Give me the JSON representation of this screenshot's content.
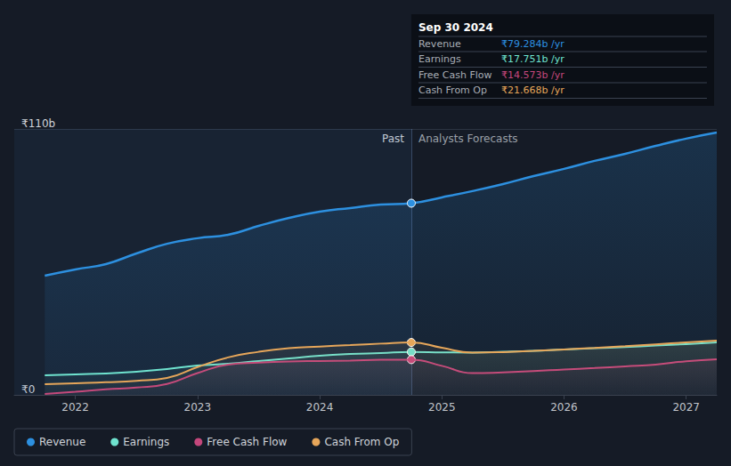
{
  "chart_data": {
    "type": "line",
    "x": [
      2021.75,
      2022.0,
      2022.25,
      2022.5,
      2022.75,
      2023.0,
      2023.25,
      2023.5,
      2023.75,
      2024.0,
      2024.25,
      2024.5,
      2024.75,
      2025.0,
      2025.25,
      2025.5,
      2025.75,
      2026.0,
      2026.25,
      2026.5,
      2026.75,
      2027.0,
      2027.25
    ],
    "series": [
      {
        "name": "Revenue",
        "color": "#2d90e0",
        "values": [
          49.3,
          51.9,
          54.1,
          58.5,
          62.5,
          64.8,
          66.2,
          69.9,
          73.2,
          75.8,
          77.3,
          78.7,
          79.284,
          81.7,
          84.3,
          87.2,
          90.5,
          93.5,
          96.8,
          99.7,
          103.0,
          106.0,
          108.5
        ]
      },
      {
        "name": "Earnings",
        "color": "#6fe3cf",
        "values": [
          8.1,
          8.5,
          8.8,
          9.6,
          10.7,
          12.1,
          12.9,
          14.0,
          15.1,
          16.2,
          16.9,
          17.3,
          17.751,
          17.6,
          17.5,
          17.8,
          18.2,
          18.8,
          19.3,
          19.8,
          20.4,
          21.0,
          21.7
        ]
      },
      {
        "name": "Free Cash Flow",
        "color": "#c4477c",
        "values": [
          0.4,
          1.3,
          2.3,
          3.0,
          4.5,
          9.0,
          12.5,
          13.3,
          13.8,
          14.0,
          14.2,
          14.5,
          14.573,
          12.0,
          9.0,
          9.3,
          9.8,
          10.5,
          11.1,
          11.8,
          12.5,
          13.9,
          14.7
        ]
      },
      {
        "name": "Cash From Op",
        "color": "#e6a65a",
        "values": [
          4.4,
          4.8,
          5.2,
          5.8,
          7.0,
          11.5,
          15.5,
          17.8,
          19.3,
          20.0,
          20.6,
          21.2,
          21.668,
          19.5,
          17.5,
          17.7,
          18.2,
          18.8,
          19.4,
          20.1,
          20.9,
          21.7,
          22.4
        ]
      }
    ],
    "xlim": [
      2021.5,
      2027.25
    ],
    "xticks": [
      2022,
      2023,
      2024,
      2025,
      2026,
      2027
    ],
    "ylim": [
      0,
      110
    ],
    "yticks": [
      {
        "value": 0,
        "label": "₹0"
      },
      {
        "value": 110,
        "label": "₹110b"
      }
    ],
    "grid": true,
    "legend": "bottom-left",
    "annotations": {
      "past_label": "Past",
      "forecast_label": "Analysts Forecasts",
      "split_x": 2024.75,
      "tooltip": {
        "title": "Sep 30 2024",
        "rows": [
          {
            "label": "Revenue",
            "value": 79.284,
            "text": "₹79.284b /yr"
          },
          {
            "label": "Earnings",
            "value": 17.751,
            "text": "₹17.751b /yr"
          },
          {
            "label": "Free Cash Flow",
            "value": 14.573,
            "text": "₹14.573b /yr"
          },
          {
            "label": "Cash From Op",
            "value": 21.668,
            "text": "₹21.668b /yr"
          }
        ]
      }
    }
  }
}
